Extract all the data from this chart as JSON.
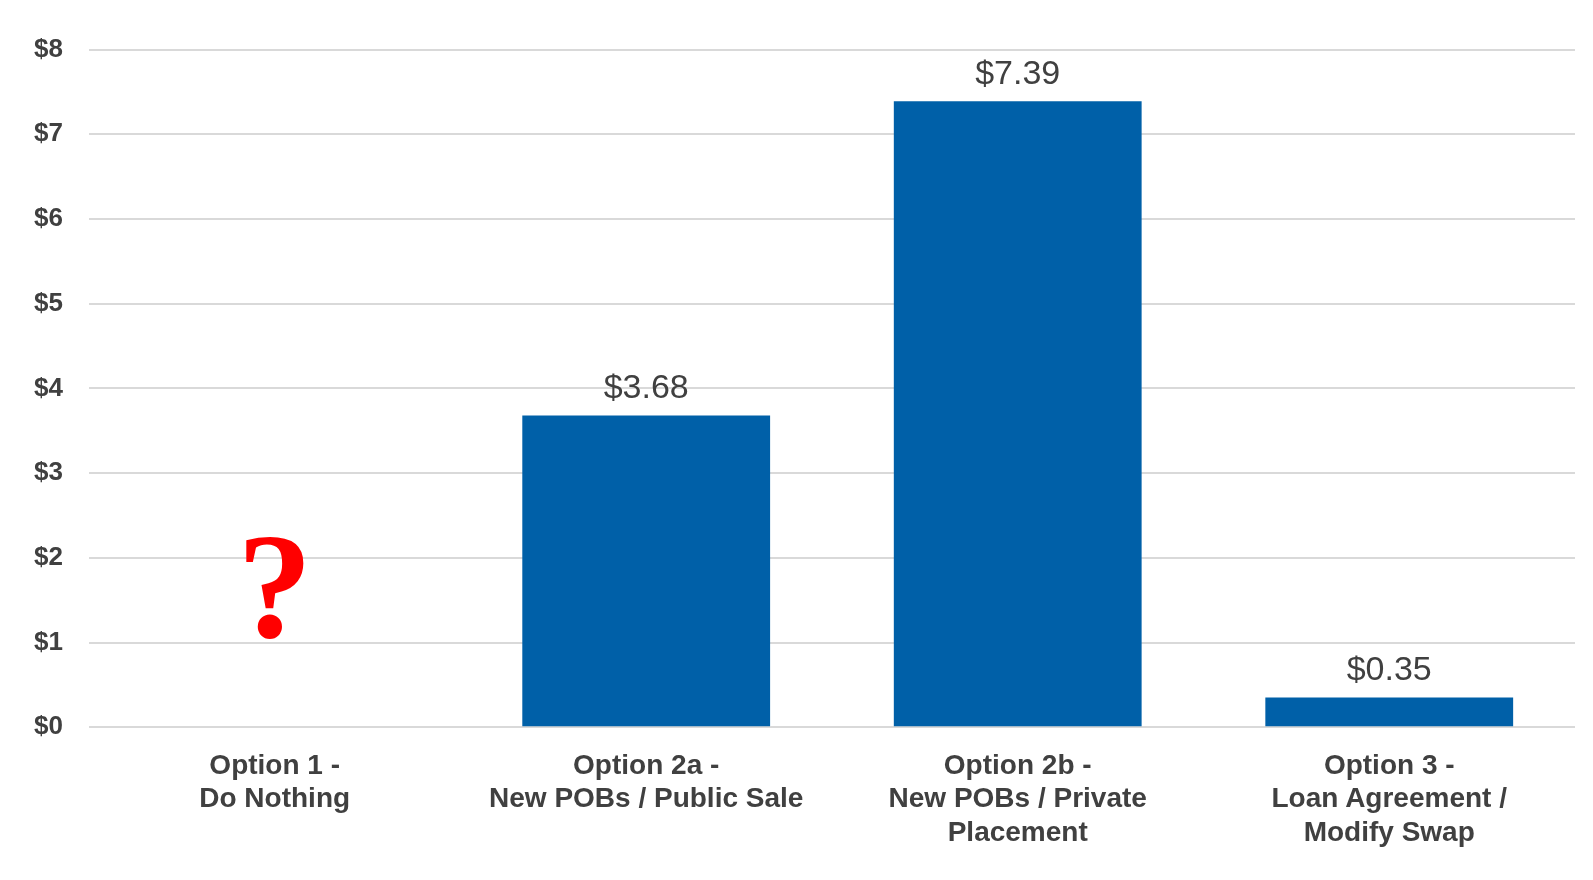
{
  "chart_data": {
    "type": "bar",
    "categories": [
      "Option 1 -\nDo Nothing",
      "Option 2a -\nNew POBs / Public Sale",
      "Option 2b -\nNew POBs / Private\nPlacement",
      "Option 3 -\nLoan Agreement /\nModify Swap"
    ],
    "values": [
      null,
      3.68,
      7.39,
      0.35
    ],
    "value_labels": [
      null,
      "$3.68",
      "$7.39",
      "$0.35"
    ],
    "color": "#0060a8",
    "ylim": [
      0,
      8
    ],
    "yticks": [
      {
        "value": 0,
        "label": "$0"
      },
      {
        "value": 1,
        "label": "$1"
      },
      {
        "value": 2,
        "label": "$2"
      },
      {
        "value": 3,
        "label": "$3"
      },
      {
        "value": 4,
        "label": "$4"
      },
      {
        "value": 5,
        "label": "$5"
      },
      {
        "value": 6,
        "label": "$6"
      },
      {
        "value": 7,
        "label": "$7"
      },
      {
        "value": 8,
        "label": "$8"
      }
    ],
    "annotations": [
      "?"
    ],
    "grid": "y",
    "legend": false
  }
}
